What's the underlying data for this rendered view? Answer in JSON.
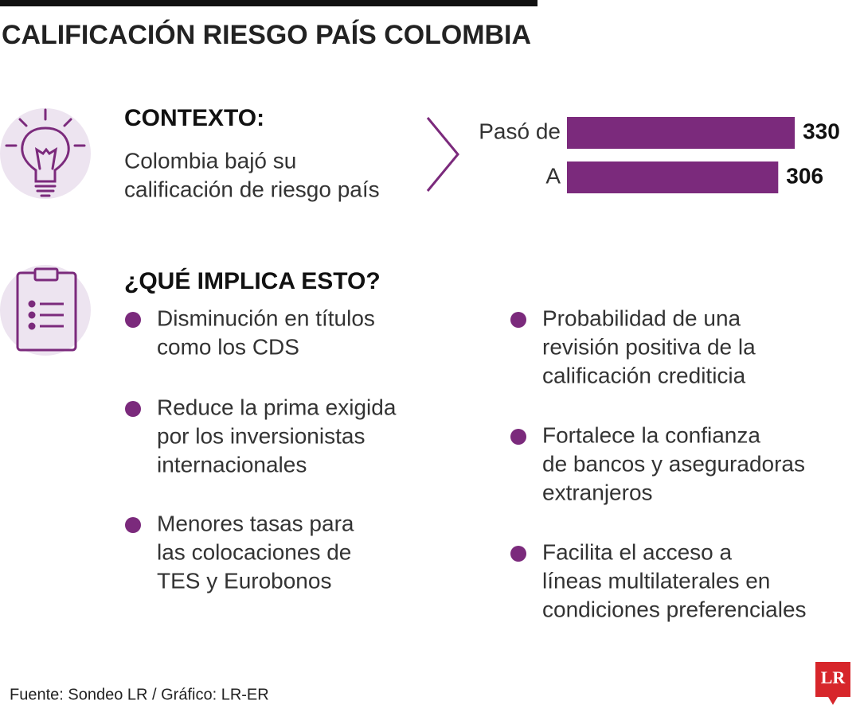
{
  "header": {
    "title": "CALIFICACIÓN RIESGO PAÍS COLOMBIA"
  },
  "context": {
    "heading": "CONTEXTO:",
    "lines": [
      "Colombia bajó su",
      "calificación de riesgo país"
    ]
  },
  "chart_data": {
    "type": "bar",
    "orientation": "horizontal",
    "categories": [
      "Pasó de",
      "A"
    ],
    "values": [
      330,
      306
    ],
    "color": "#7b2a7c"
  },
  "implications": {
    "heading": "¿QUÉ IMPLICA ESTO?",
    "left": [
      [
        "Disminución en títulos",
        "como los CDS"
      ],
      [
        "Reduce la prima exigida",
        "por los inversionistas",
        "internacionales"
      ],
      [
        "Menores tasas para",
        "las colocaciones de",
        "TES y Eurobonos"
      ]
    ],
    "right": [
      [
        "Probabilidad de una",
        "revisión positiva de la",
        "calificación crediticia"
      ],
      [
        "Fortalece la confianza",
        "de bancos y aseguradoras",
        "extranjeros"
      ],
      [
        "Facilita el acceso a",
        "líneas multilaterales en",
        "condiciones preferenciales"
      ]
    ]
  },
  "footer": {
    "source": "Fuente: Sondeo LR / Gráfico: LR-ER",
    "logo": "LR"
  }
}
